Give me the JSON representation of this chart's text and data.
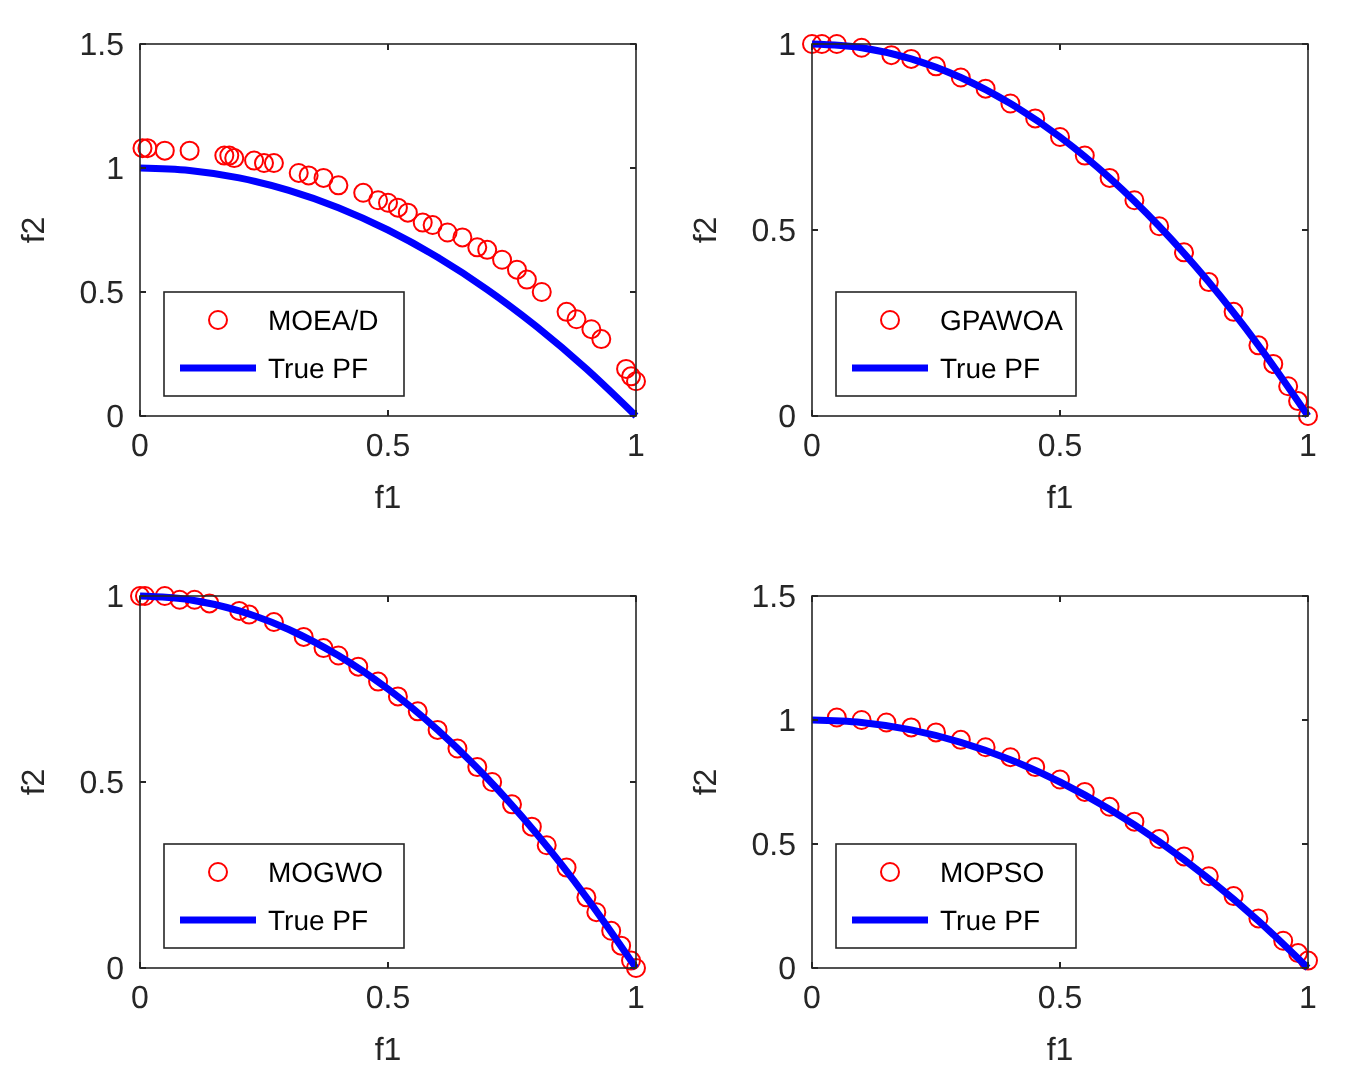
{
  "chart_data": [
    {
      "type": "scatter",
      "xlabel": "f1",
      "ylabel": "f2",
      "xlim": [
        0,
        1
      ],
      "ylim": [
        0,
        1.5
      ],
      "xticks": [
        0,
        0.5,
        1
      ],
      "yticks": [
        0,
        0.5,
        1,
        1.5
      ],
      "legend": "bottom left",
      "series": [
        {
          "name": "MOEA/D",
          "marker": "circle",
          "color": "#ff0000",
          "x": [
            0.005,
            0.015,
            0.05,
            0.1,
            0.17,
            0.18,
            0.19,
            0.23,
            0.25,
            0.27,
            0.32,
            0.34,
            0.37,
            0.4,
            0.45,
            0.48,
            0.5,
            0.52,
            0.54,
            0.57,
            0.59,
            0.62,
            0.65,
            0.68,
            0.7,
            0.73,
            0.76,
            0.78,
            0.81,
            0.86,
            0.88,
            0.91,
            0.93,
            0.98,
            0.99,
            1.0
          ],
          "values": [
            1.08,
            1.08,
            1.07,
            1.07,
            1.05,
            1.05,
            1.04,
            1.03,
            1.02,
            1.02,
            0.98,
            0.97,
            0.96,
            0.93,
            0.9,
            0.87,
            0.86,
            0.84,
            0.82,
            0.78,
            0.77,
            0.74,
            0.72,
            0.68,
            0.67,
            0.63,
            0.59,
            0.55,
            0.5,
            0.42,
            0.39,
            0.35,
            0.31,
            0.19,
            0.16,
            0.14
          ]
        },
        {
          "name": "True PF",
          "type": "line",
          "color": "#0000ff",
          "x": [
            0,
            0.1,
            0.2,
            0.3,
            0.4,
            0.5,
            0.6,
            0.7,
            0.8,
            0.9,
            1
          ],
          "values": [
            1,
            0.99,
            0.96,
            0.91,
            0.84,
            0.75,
            0.64,
            0.51,
            0.36,
            0.19,
            0
          ]
        }
      ]
    },
    {
      "type": "scatter",
      "xlabel": "f1",
      "ylabel": "f2",
      "xlim": [
        0,
        1
      ],
      "ylim": [
        0,
        1
      ],
      "xticks": [
        0,
        0.5,
        1
      ],
      "yticks": [
        0,
        0.5,
        1
      ],
      "legend": "bottom left",
      "series": [
        {
          "name": "GPAWOA",
          "marker": "circle",
          "color": "#ff0000",
          "x": [
            0,
            0.02,
            0.05,
            0.1,
            0.16,
            0.2,
            0.25,
            0.3,
            0.35,
            0.4,
            0.45,
            0.5,
            0.55,
            0.6,
            0.65,
            0.7,
            0.75,
            0.8,
            0.85,
            0.9,
            0.93,
            0.96,
            0.98,
            1.0
          ],
          "values": [
            1,
            1,
            1,
            0.99,
            0.97,
            0.96,
            0.94,
            0.91,
            0.88,
            0.84,
            0.8,
            0.75,
            0.7,
            0.64,
            0.58,
            0.51,
            0.44,
            0.36,
            0.28,
            0.19,
            0.14,
            0.08,
            0.04,
            0
          ]
        },
        {
          "name": "True PF",
          "type": "line",
          "color": "#0000ff",
          "x": [
            0,
            0.1,
            0.2,
            0.3,
            0.4,
            0.5,
            0.6,
            0.7,
            0.8,
            0.9,
            1
          ],
          "values": [
            1,
            0.99,
            0.96,
            0.91,
            0.84,
            0.75,
            0.64,
            0.51,
            0.36,
            0.19,
            0
          ]
        }
      ]
    },
    {
      "type": "scatter",
      "xlabel": "f1",
      "ylabel": "f2",
      "xlim": [
        0,
        1
      ],
      "ylim": [
        0,
        1
      ],
      "xticks": [
        0,
        0.5,
        1
      ],
      "yticks": [
        0,
        0.5,
        1
      ],
      "legend": "bottom left",
      "series": [
        {
          "name": "MOGWO",
          "marker": "circle",
          "color": "#ff0000",
          "x": [
            0,
            0.01,
            0.05,
            0.08,
            0.11,
            0.14,
            0.2,
            0.22,
            0.27,
            0.33,
            0.37,
            0.4,
            0.44,
            0.48,
            0.52,
            0.56,
            0.6,
            0.64,
            0.68,
            0.71,
            0.75,
            0.79,
            0.82,
            0.86,
            0.9,
            0.92,
            0.95,
            0.97,
            0.99,
            1.0
          ],
          "values": [
            1,
            1,
            1,
            0.99,
            0.99,
            0.98,
            0.96,
            0.95,
            0.93,
            0.89,
            0.86,
            0.84,
            0.81,
            0.77,
            0.73,
            0.69,
            0.64,
            0.59,
            0.54,
            0.5,
            0.44,
            0.38,
            0.33,
            0.27,
            0.19,
            0.15,
            0.1,
            0.06,
            0.02,
            0
          ]
        },
        {
          "name": "True PF",
          "type": "line",
          "color": "#0000ff",
          "x": [
            0,
            0.1,
            0.2,
            0.3,
            0.4,
            0.5,
            0.6,
            0.7,
            0.8,
            0.9,
            1
          ],
          "values": [
            1,
            0.99,
            0.96,
            0.91,
            0.84,
            0.75,
            0.64,
            0.51,
            0.36,
            0.19,
            0
          ]
        }
      ]
    },
    {
      "type": "scatter",
      "xlabel": "f1",
      "ylabel": "f2",
      "xlim": [
        0,
        1
      ],
      "ylim": [
        0,
        1.5
      ],
      "xticks": [
        0,
        0.5,
        1
      ],
      "yticks": [
        0,
        0.5,
        1,
        1.5
      ],
      "legend": "bottom left",
      "series": [
        {
          "name": "MOPSO",
          "marker": "circle",
          "color": "#ff0000",
          "x": [
            0.05,
            0.1,
            0.15,
            0.2,
            0.25,
            0.3,
            0.35,
            0.4,
            0.45,
            0.5,
            0.55,
            0.6,
            0.65,
            0.7,
            0.75,
            0.8,
            0.85,
            0.9,
            0.95,
            0.98,
            1.0
          ],
          "values": [
            1.01,
            1,
            0.99,
            0.97,
            0.95,
            0.92,
            0.89,
            0.85,
            0.81,
            0.76,
            0.71,
            0.65,
            0.59,
            0.52,
            0.45,
            0.37,
            0.29,
            0.2,
            0.11,
            0.06,
            0.03
          ]
        },
        {
          "name": "True PF",
          "type": "line",
          "color": "#0000ff",
          "x": [
            0,
            0.1,
            0.2,
            0.3,
            0.4,
            0.5,
            0.6,
            0.7,
            0.8,
            0.9,
            1
          ],
          "values": [
            1,
            0.99,
            0.96,
            0.91,
            0.84,
            0.75,
            0.64,
            0.51,
            0.36,
            0.19,
            0
          ]
        }
      ]
    }
  ]
}
